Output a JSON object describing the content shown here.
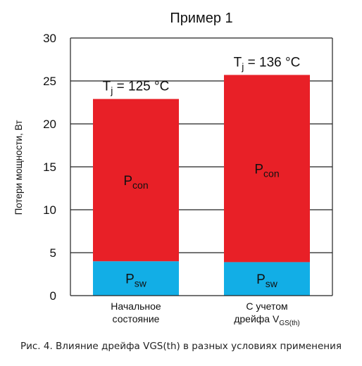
{
  "chart_data": {
    "type": "bar",
    "stacked": true,
    "title": "Пример 1",
    "ylabel": "Потери мощности, Вт",
    "xlabel": "",
    "ylim": [
      0,
      30
    ],
    "yticks": [
      0,
      5,
      10,
      15,
      20,
      25,
      30
    ],
    "grid": true,
    "categories": [
      {
        "lines": [
          "Начальное",
          "состояние"
        ]
      },
      {
        "lines": [
          "С учетом",
          "дрейфа V"
        ],
        "sub": "GS(th)"
      }
    ],
    "series": [
      {
        "key": "sw",
        "label_main": "P",
        "label_sub": "sw",
        "color": "#12aee6",
        "values": [
          4.0,
          3.9
        ]
      },
      {
        "key": "con",
        "label_main": "P",
        "label_sub": "con",
        "color": "#e82027",
        "values": [
          18.9,
          21.8
        ]
      }
    ],
    "annotations": [
      {
        "main": "T",
        "sub": "j",
        "rest": " = 125 °C"
      },
      {
        "main": "T",
        "sub": "j",
        "rest": " = 136 °C"
      }
    ]
  },
  "caption": "Рис. 4. Влияние дрейфа VGS(th) в разных условиях применения"
}
